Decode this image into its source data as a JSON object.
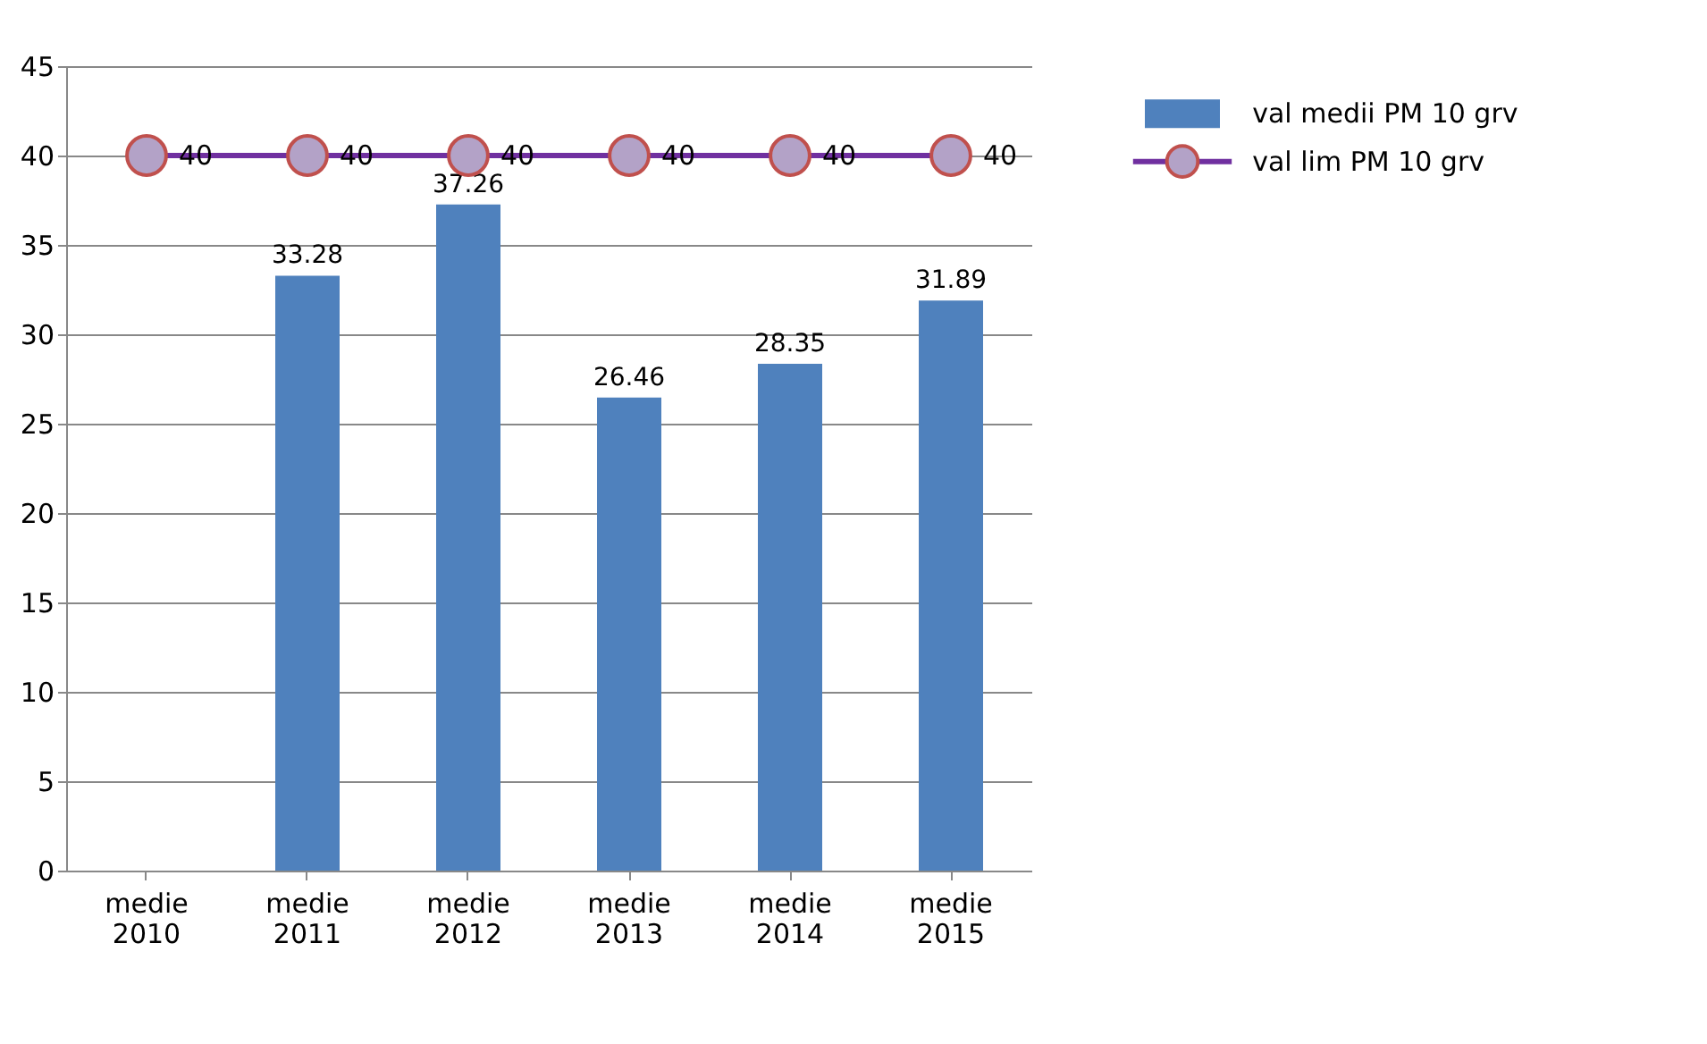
{
  "chart_data": {
    "type": "bar",
    "categories": [
      "medie 2010",
      "medie 2011",
      "medie 2012",
      "medie 2013",
      "medie 2014",
      "medie 2015"
    ],
    "series": [
      {
        "name": "val medii PM 10 grv",
        "color": "#4f81bd",
        "values": [
          null,
          33.28,
          37.26,
          26.46,
          28.35,
          31.89
        ]
      },
      {
        "name": "val lim PM 10 grv",
        "type": "line",
        "color": "#7030a0",
        "values": [
          40,
          40,
          40,
          40,
          40,
          40
        ]
      }
    ],
    "ylim": [
      0,
      45
    ],
    "yticks": [
      0,
      5,
      10,
      15,
      20,
      25,
      30,
      35,
      40,
      45
    ],
    "grid": "y",
    "legend": "right",
    "data_labels": true,
    "marker": "circle",
    "line_style": "solid"
  }
}
